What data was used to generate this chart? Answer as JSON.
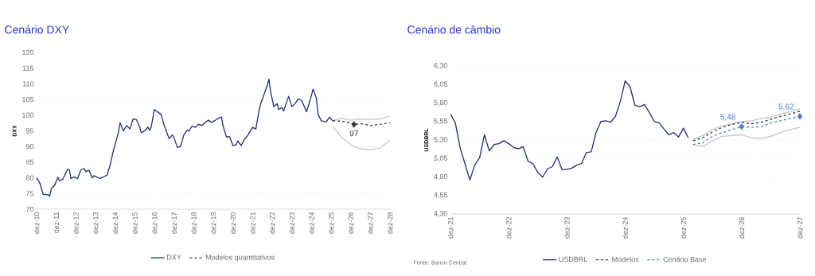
{
  "chart_data": [
    {
      "type": "line",
      "title": "Cenário DXY",
      "ylabel": "DXY",
      "grid": "y",
      "legend": "bottom",
      "xlim": [
        "2010-12",
        "2028-12"
      ],
      "xticks": [
        {
          "value": "2010-12",
          "label": "dez-10"
        },
        {
          "value": "2011-12",
          "label": "dez-11"
        },
        {
          "value": "2012-12",
          "label": "dez-12"
        },
        {
          "value": "2013-12",
          "label": "dez-13"
        },
        {
          "value": "2014-12",
          "label": "dez-14"
        },
        {
          "value": "2015-12",
          "label": "dez-15"
        },
        {
          "value": "2016-12",
          "label": "dez-16"
        },
        {
          "value": "2017-12",
          "label": "dez-17"
        },
        {
          "value": "2018-12",
          "label": "dez-18"
        },
        {
          "value": "2019-12",
          "label": "dez-19"
        },
        {
          "value": "2020-12",
          "label": "dez-20"
        },
        {
          "value": "2021-12",
          "label": "dez-21"
        },
        {
          "value": "2022-12",
          "label": "dez-22"
        },
        {
          "value": "2023-12",
          "label": "dez-23"
        },
        {
          "value": "2024-12",
          "label": "dez-24"
        },
        {
          "value": "2025-12",
          "label": "dez-25"
        },
        {
          "value": "2026-12",
          "label": "dez-26"
        },
        {
          "value": "2027-12",
          "label": "dez-27"
        },
        {
          "value": "2028-12",
          "label": "dez-28"
        }
      ],
      "ylim": [
        70,
        120
      ],
      "yticks": [
        70,
        75,
        80,
        85,
        90,
        95,
        100,
        105,
        110,
        115,
        120
      ],
      "series": [
        {
          "name": "DXY",
          "color": "#1f2f6e",
          "line_style": "solid",
          "x": [
            "2010-12",
            "2011-02",
            "2011-04",
            "2011-07",
            "2011-08",
            "2011-09",
            "2011-11",
            "2012-01",
            "2012-02",
            "2012-04",
            "2012-07",
            "2012-08",
            "2012-09",
            "2012-11",
            "2013-01",
            "2013-03",
            "2013-05",
            "2013-06",
            "2013-08",
            "2013-10",
            "2013-11",
            "2014-01",
            "2014-03",
            "2014-05",
            "2014-07",
            "2014-09",
            "2014-11",
            "2015-02",
            "2015-03",
            "2015-05",
            "2015-07",
            "2015-09",
            "2015-11",
            "2016-01",
            "2016-03",
            "2016-04",
            "2016-06",
            "2016-08",
            "2016-09",
            "2016-10",
            "2016-12",
            "2017-02",
            "2017-04",
            "2017-06",
            "2017-09",
            "2017-11",
            "2017-12",
            "2018-02",
            "2018-04",
            "2018-06",
            "2018-08",
            "2018-09",
            "2018-11",
            "2019-01",
            "2019-03",
            "2019-05",
            "2019-07",
            "2019-09",
            "2019-11",
            "2020-02",
            "2020-03",
            "2020-05",
            "2020-06",
            "2020-08",
            "2020-10",
            "2020-12",
            "2021-02",
            "2021-03",
            "2021-05",
            "2021-07",
            "2021-09",
            "2021-12",
            "2022-02",
            "2022-04",
            "2022-05",
            "2022-07",
            "2022-09",
            "2022-10",
            "2022-11",
            "2023-01",
            "2023-03",
            "2023-04",
            "2023-06",
            "2023-07",
            "2023-10",
            "2023-12",
            "2024-02",
            "2024-04",
            "2024-06",
            "2024-09",
            "2024-11",
            "2025-01",
            "2025-03",
            "2025-04",
            "2025-06",
            "2025-09",
            "2025-11",
            "2026-01"
          ],
          "values": [
            80.0,
            78.3,
            74.7,
            74.6,
            74.2,
            76.6,
            77.6,
            80.2,
            79.0,
            79.6,
            82.8,
            82.5,
            79.8,
            80.3,
            79.7,
            82.5,
            83.0,
            82.0,
            82.4,
            80.0,
            80.7,
            80.2,
            79.8,
            80.4,
            80.8,
            84.2,
            88.9,
            94.4,
            97.6,
            95.0,
            96.7,
            95.6,
            98.8,
            98.6,
            96.2,
            94.4,
            95.0,
            96.2,
            95.2,
            96.1,
            101.8,
            101.0,
            100.3,
            96.7,
            92.5,
            93.7,
            92.8,
            89.7,
            90.0,
            93.7,
            95.2,
            94.9,
            96.5,
            96.1,
            97.1,
            96.7,
            97.6,
            98.4,
            97.7,
            98.6,
            99.0,
            99.4,
            96.5,
            93.1,
            93.1,
            90.3,
            90.6,
            91.8,
            90.3,
            92.3,
            93.5,
            96.1,
            95.6,
            101.6,
            103.7,
            106.6,
            109.6,
            111.5,
            107.5,
            102.7,
            103.7,
            101.8,
            102.4,
            101.3,
            106.0,
            102.7,
            103.7,
            105.2,
            104.7,
            101.1,
            104.5,
            108.3,
            105.4,
            100.3,
            98.2,
            97.8,
            99.4,
            98.2
          ]
        },
        {
          "name": "Modelos quantitativos",
          "color": "#333333",
          "line_style": "dashed",
          "x": [
            "2026-01",
            "2026-06",
            "2026-12",
            "2027-02",
            "2027-06",
            "2027-12",
            "2028-06",
            "2028-12"
          ],
          "values": [
            98.2,
            98.1,
            97.6,
            97,
            97.3,
            96.7,
            97.1,
            97.6
          ]
        },
        {
          "color": "#c8c8c8",
          "line_style": "solid",
          "x": [
            "2026-01",
            "2026-06",
            "2026-12",
            "2027-02",
            "2027-06",
            "2027-12",
            "2028-06",
            "2028-12"
          ],
          "values": [
            96.5,
            93.1,
            90.6,
            89.9,
            89.3,
            88.9,
            89.5,
            92.0
          ]
        },
        {
          "color": "#c8c8c8",
          "line_style": "solid",
          "x": [
            "2026-01",
            "2026-06",
            "2026-12",
            "2027-02",
            "2027-06",
            "2027-12",
            "2028-06",
            "2028-12"
          ],
          "values": [
            98.2,
            99.0,
            98.4,
            98.6,
            98.8,
            98.6,
            98.8,
            99.7
          ]
        }
      ],
      "annotations": [
        {
          "text": "97",
          "x": "2027-02",
          "y": 97
        }
      ]
    },
    {
      "type": "line",
      "title": "Cenário de câmbio",
      "ylabel": "USDBRL",
      "grid": "y",
      "legend": "bottom",
      "xlim": [
        "2021-12",
        "2027-12"
      ],
      "xticks": [
        {
          "value": "2021-12",
          "label": "dez-21"
        },
        {
          "value": "2022-12",
          "label": "dez-22"
        },
        {
          "value": "2023-12",
          "label": "dez-23"
        },
        {
          "value": "2024-12",
          "label": "dez-24"
        },
        {
          "value": "2025-12",
          "label": "dez-25"
        },
        {
          "value": "2026-12",
          "label": "dez-26"
        },
        {
          "value": "2027-12",
          "label": "dez-27"
        }
      ],
      "ylim": [
        4.3,
        6.3
      ],
      "yticks": [
        {
          "value": 4.3,
          "label": "4,30"
        },
        {
          "value": 4.55,
          "label": "4,55"
        },
        {
          "value": 4.8,
          "label": "4,80"
        },
        {
          "value": 5.05,
          "label": "5,05"
        },
        {
          "value": 5.3,
          "label": "5,30"
        },
        {
          "value": 5.55,
          "label": "5,55"
        },
        {
          "value": 5.8,
          "label": "5,80"
        },
        {
          "value": 6.05,
          "label": "6,05"
        },
        {
          "value": 6.3,
          "label": "6,30"
        }
      ],
      "series": [
        {
          "name": "USDBRL",
          "color": "#1f2f6e",
          "line_style": "solid",
          "x": [
            "2021-12",
            "2022-01",
            "2022-02",
            "2022-04",
            "2022-05",
            "2022-06",
            "2022-07",
            "2022-08",
            "2022-09",
            "2022-10",
            "2022-11",
            "2022-12",
            "2023-01",
            "2023-02",
            "2023-03",
            "2023-04",
            "2023-05",
            "2023-06",
            "2023-07",
            "2023-08",
            "2023-09",
            "2023-10",
            "2023-11",
            "2023-12",
            "2024-01",
            "2024-02",
            "2024-03",
            "2024-04",
            "2024-05",
            "2024-06",
            "2024-07",
            "2024-08",
            "2024-09",
            "2024-10",
            "2024-11",
            "2024-12",
            "2025-01",
            "2025-02",
            "2025-03",
            "2025-04",
            "2025-05",
            "2025-06",
            "2025-07",
            "2025-08",
            "2025-09",
            "2025-10",
            "2025-11",
            "2025-12",
            "2026-01"
          ],
          "values": [
            5.65,
            5.53,
            5.19,
            4.76,
            4.96,
            5.06,
            5.37,
            5.15,
            5.24,
            5.25,
            5.29,
            5.25,
            5.2,
            5.18,
            5.21,
            5.01,
            4.98,
            4.86,
            4.8,
            4.91,
            4.94,
            5.07,
            4.9,
            4.9,
            4.92,
            4.96,
            4.98,
            5.13,
            5.14,
            5.4,
            5.55,
            5.56,
            5.54,
            5.62,
            5.82,
            6.1,
            6.02,
            5.77,
            5.75,
            5.78,
            5.67,
            5.55,
            5.53,
            5.45,
            5.37,
            5.4,
            5.34,
            5.46,
            5.33
          ]
        },
        {
          "name": "Modelos",
          "color": "#333333",
          "line_style": "dashed",
          "x": [
            "2026-02",
            "2026-04",
            "2026-06",
            "2026-08",
            "2026-10",
            "2026-12",
            "2027-02",
            "2027-04",
            "2027-06",
            "2027-08",
            "2027-10",
            "2027-12"
          ],
          "values": [
            5.29,
            5.33,
            5.41,
            5.47,
            5.51,
            5.54,
            5.52,
            5.54,
            5.58,
            5.62,
            5.65,
            5.69
          ]
        },
        {
          "color": "#c8c8c8",
          "line_style": "solid",
          "x": [
            "2026-02",
            "2026-04",
            "2026-06",
            "2026-08",
            "2026-10",
            "2026-12",
            "2027-02",
            "2027-04",
            "2027-06",
            "2027-08",
            "2027-10",
            "2027-12"
          ],
          "values": [
            5.24,
            5.21,
            5.29,
            5.35,
            5.36,
            5.37,
            5.33,
            5.32,
            5.35,
            5.4,
            5.44,
            5.47
          ]
        },
        {
          "color": "#c8c8c8",
          "line_style": "solid",
          "x": [
            "2026-02",
            "2026-04",
            "2026-06",
            "2026-08",
            "2026-10",
            "2026-12",
            "2027-02",
            "2027-04",
            "2027-06",
            "2027-08",
            "2027-10",
            "2027-12"
          ],
          "values": [
            5.31,
            5.36,
            5.44,
            5.49,
            5.52,
            5.55,
            5.56,
            5.59,
            5.61,
            5.65,
            5.68,
            5.72
          ]
        },
        {
          "name": "Cenário Base",
          "color": "#4a7bd0",
          "line_style": "dashed",
          "x": [
            "2026-02",
            "2026-04",
            "2026-06",
            "2026-08",
            "2026-10",
            "2026-12",
            "2027-02",
            "2027-04",
            "2027-06",
            "2027-08",
            "2027-10",
            "2027-12"
          ],
          "values": [
            5.24,
            5.26,
            5.35,
            5.4,
            5.44,
            5.48,
            5.47,
            5.48,
            5.53,
            5.56,
            5.59,
            5.62
          ]
        }
      ],
      "annotations": [
        {
          "text": "5,48",
          "x": "2026-12",
          "y": 5.48
        },
        {
          "text": "5,62",
          "x": "2027-12",
          "y": 5.62
        },
        "Fonte: Banco Central"
      ]
    }
  ]
}
